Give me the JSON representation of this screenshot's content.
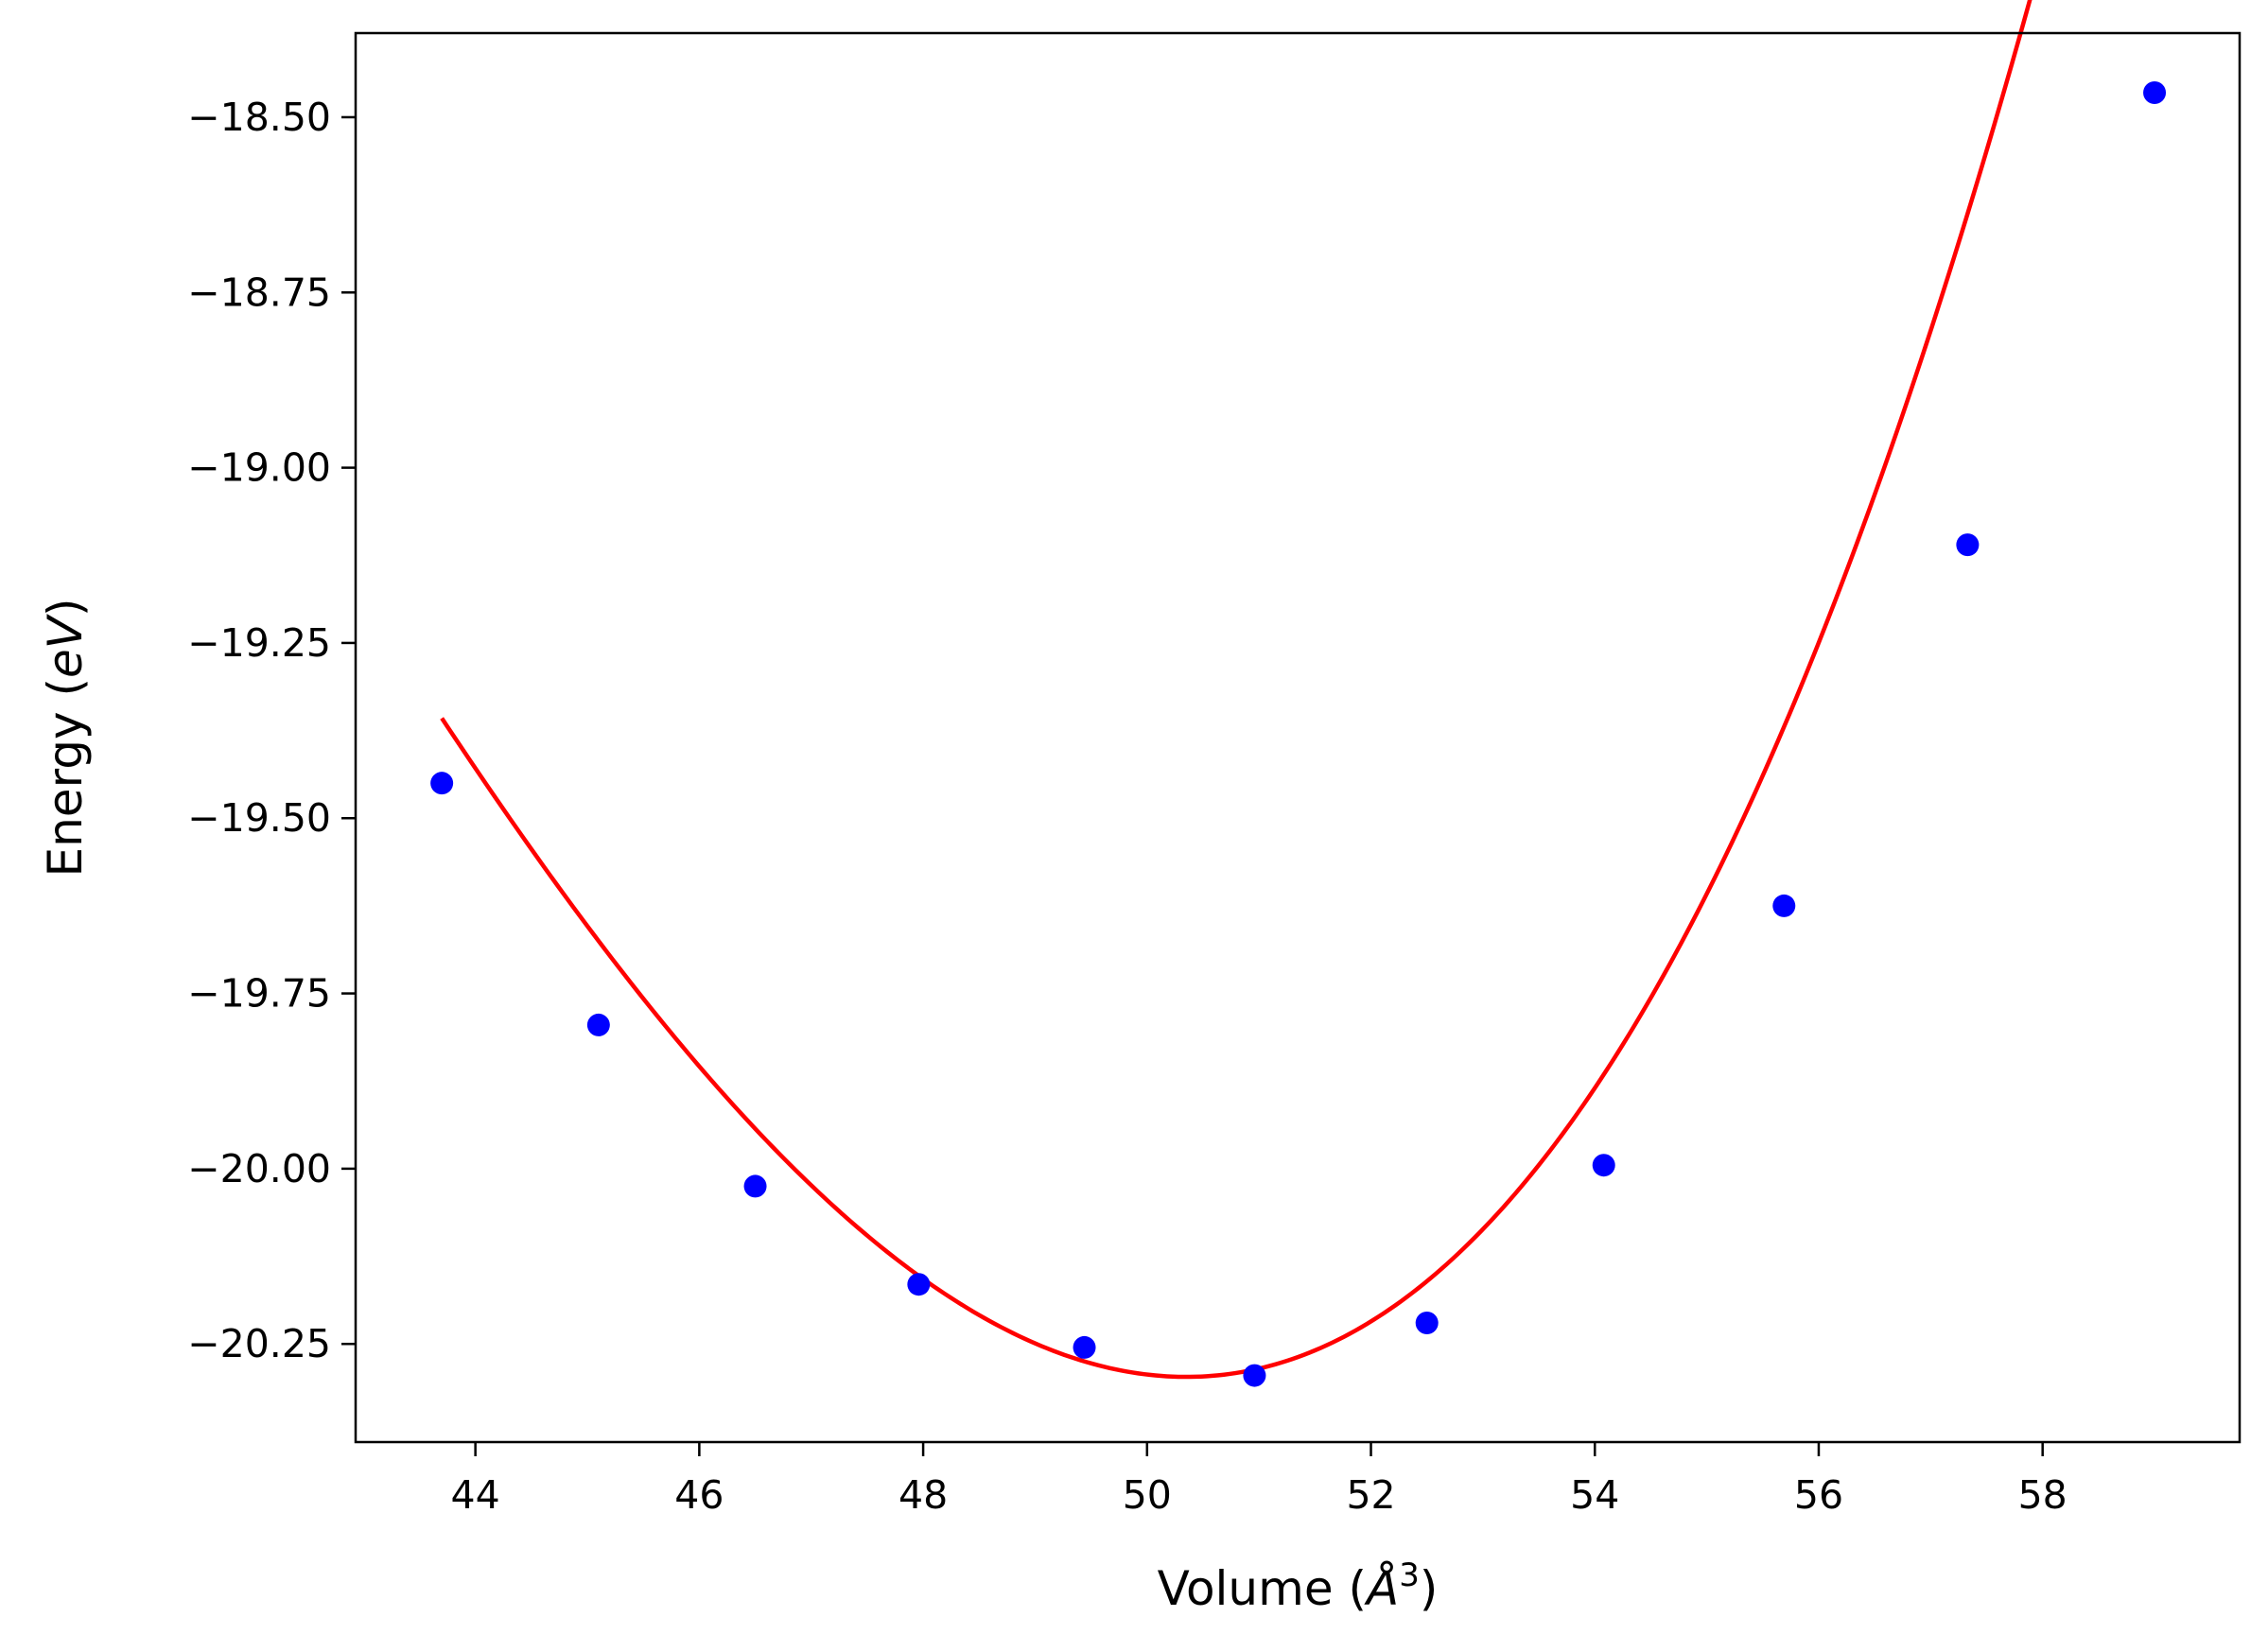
{
  "chart_data": {
    "type": "scatter",
    "title": "",
    "xlabel": "Volume (",
    "xlabel_unit": "Å",
    "xlabel_exp": "3",
    "xlabel_close": ")",
    "ylabel": "Energy (",
    "ylabel_unit": "eV",
    "ylabel_close": ")",
    "xlim": [
      42.93,
      59.76
    ],
    "ylim": [
      -20.39,
      -18.38
    ],
    "xticks": [
      44,
      46,
      48,
      50,
      52,
      54,
      56,
      58
    ],
    "yticks": [
      -18.5,
      -18.75,
      -19.0,
      -19.25,
      -19.5,
      -19.75,
      -20.0,
      -20.25
    ],
    "ytick_labels": [
      "−18.50",
      "−18.75",
      "−19.00",
      "−19.25",
      "−19.50",
      "−19.75",
      "−20.00",
      "−20.25"
    ],
    "grid": false,
    "series": [
      {
        "kind": "points",
        "color": "#0000ff",
        "x": [
          43.7,
          45.1,
          46.5,
          47.96,
          49.44,
          50.96,
          52.5,
          54.08,
          55.69,
          57.33,
          59.0
        ],
        "y": [
          -19.45,
          -19.795,
          -20.025,
          -20.165,
          -20.255,
          -20.295,
          -20.22,
          -19.995,
          -19.625,
          -19.11,
          -18.465
        ]
      },
      {
        "kind": "fit-curve",
        "color": "#ff0000",
        "vmin": 50.35,
        "emin": -20.297,
        "coeffs": [
          0.0275,
          0.00094
        ],
        "x_range": [
          43.7,
          59.0
        ]
      }
    ]
  }
}
